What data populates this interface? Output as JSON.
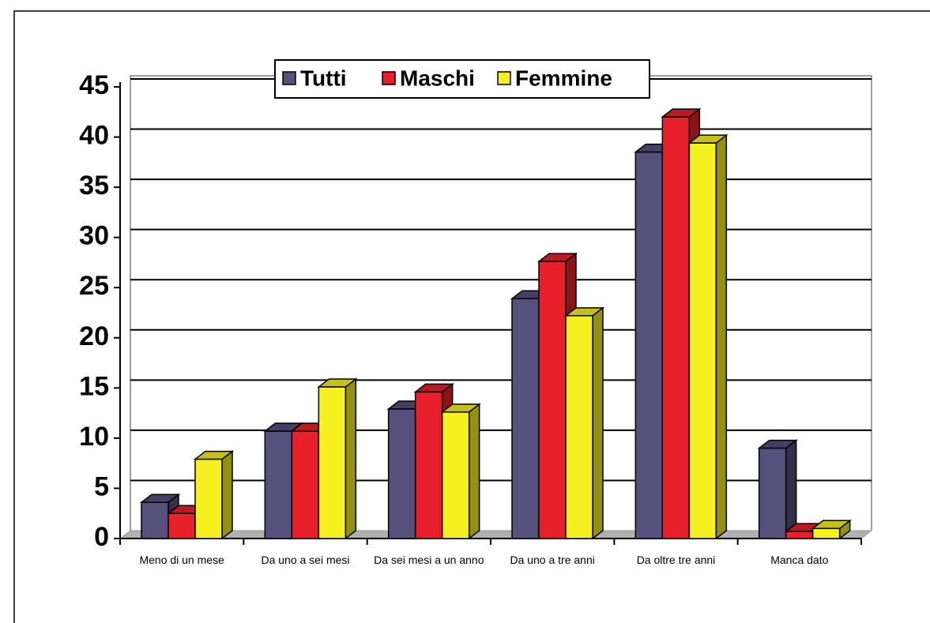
{
  "chart_data": {
    "type": "bar3d",
    "categories": [
      "Meno di un mese",
      "Da uno a sei mesi",
      "Da sei mesi a un anno",
      "Da uno a tre anni",
      "Da oltre tre anni",
      "Manca dato"
    ],
    "series": [
      {
        "name": "Tutti",
        "color": "#56507c",
        "values": [
          3.6,
          10.7,
          12.9,
          23.9,
          38.5,
          9.0
        ]
      },
      {
        "name": "Maschi",
        "color": "#e8202a",
        "values": [
          2.5,
          10.7,
          14.6,
          27.6,
          42.0,
          0.7
        ]
      },
      {
        "name": "Femmine",
        "color": "#f7f020",
        "values": [
          7.9,
          15.1,
          12.6,
          22.2,
          39.4,
          1.0
        ]
      }
    ],
    "ylim": [
      0,
      45
    ],
    "yticks": [
      0,
      5,
      10,
      15,
      20,
      25,
      30,
      35,
      40,
      45
    ],
    "grid": true,
    "legend": "top"
  }
}
